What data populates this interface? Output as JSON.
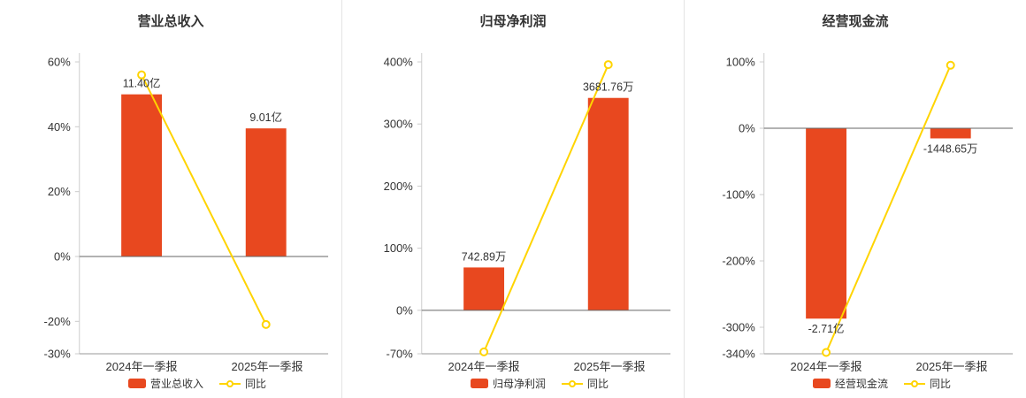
{
  "colors": {
    "bar": "#e8481f",
    "line": "#ffd400",
    "axis": "#cccccc",
    "bottom_axis": "#999999",
    "zero_line": "#666666",
    "text": "#333333"
  },
  "chart_data": [
    {
      "type": "bar+line",
      "title": "营业总收入",
      "categories": [
        "2024年一季报",
        "2025年一季报"
      ],
      "bar": {
        "name": "营业总收入",
        "value_labels": [
          "11.40亿",
          "9.01亿"
        ],
        "plot_pct": [
          50,
          39.5
        ]
      },
      "line": {
        "name": "同比",
        "pct": [
          56,
          -20.96
        ]
      },
      "y_axis": {
        "ticks": [
          "60%",
          "40%",
          "20%",
          "0%",
          "-20%",
          "-30%"
        ],
        "tick_values": [
          60,
          40,
          20,
          0,
          -20,
          -30
        ],
        "min": -30,
        "max": 60
      },
      "grid": false,
      "legend_position": "bottom"
    },
    {
      "type": "bar+line",
      "title": "归母净利润",
      "categories": [
        "2024年一季报",
        "2025年一季报"
      ],
      "bar": {
        "name": "归母净利润",
        "value_labels": [
          "742.89万",
          "3681.76万"
        ],
        "plot_pct": [
          69,
          342
        ]
      },
      "line": {
        "name": "同比",
        "pct": [
          -67,
          395.61
        ]
      },
      "y_axis": {
        "ticks": [
          "400%",
          "300%",
          "200%",
          "100%",
          "0%",
          "-70%"
        ],
        "tick_values": [
          400,
          300,
          200,
          100,
          0,
          -70
        ],
        "min": -70,
        "max": 400
      },
      "grid": false,
      "legend_position": "bottom"
    },
    {
      "type": "bar+line",
      "title": "经营现金流",
      "categories": [
        "2024年一季报",
        "2025年一季报"
      ],
      "bar": {
        "name": "经营现金流",
        "value_labels": [
          "-2.71亿",
          "-1448.65万"
        ],
        "plot_pct": [
          -287,
          -15.3
        ]
      },
      "line": {
        "name": "同比",
        "pct": [
          -338,
          95
        ]
      },
      "y_axis": {
        "ticks": [
          "100%",
          "0%",
          "-100%",
          "-200%",
          "-300%",
          "-340%"
        ],
        "tick_values": [
          100,
          0,
          -100,
          -200,
          -300,
          -340
        ],
        "min": -340,
        "max": 100
      },
      "grid": false,
      "legend_position": "bottom"
    }
  ]
}
